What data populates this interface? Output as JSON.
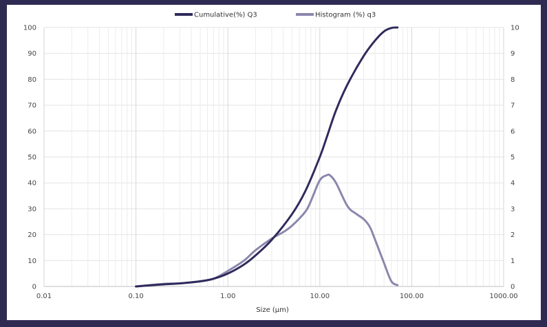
{
  "chart_data": {
    "type": "line",
    "xlabel": "Size (µm)",
    "xscale": "log",
    "xlim": [
      0.01,
      1000
    ],
    "x_ticks": [
      "0.01",
      "0.10",
      "1.00",
      "10.00",
      "100.00",
      "1000.00"
    ],
    "y_left_lim": [
      0,
      100
    ],
    "y_left_ticks": [
      "0",
      "10",
      "20",
      "30",
      "40",
      "50",
      "60",
      "70",
      "80",
      "90",
      "100"
    ],
    "y_right_lim": [
      0,
      10
    ],
    "y_right_ticks": [
      "0",
      "1",
      "2",
      "3",
      "4",
      "5",
      "6",
      "7",
      "8",
      "9",
      "10"
    ],
    "legend_position": "top",
    "grid": true,
    "series": [
      {
        "name": "Cumulative(%) Q3",
        "axis": "left",
        "color": "#2f2a5c",
        "points": [
          [
            0.1,
            0.0
          ],
          [
            0.15,
            0.5
          ],
          [
            0.2,
            0.8
          ],
          [
            0.3,
            1.2
          ],
          [
            0.5,
            2.0
          ],
          [
            0.7,
            3.0
          ],
          [
            1.0,
            5.0
          ],
          [
            1.5,
            8.5
          ],
          [
            2.0,
            12.0
          ],
          [
            3.0,
            18.0
          ],
          [
            5.0,
            28.0
          ],
          [
            7.0,
            37.0
          ],
          [
            10.0,
            50.0
          ],
          [
            12.0,
            58.0
          ],
          [
            15.0,
            68.0
          ],
          [
            20.0,
            78.0
          ],
          [
            30.0,
            89.0
          ],
          [
            40.0,
            95.0
          ],
          [
            50.0,
            98.5
          ],
          [
            60.0,
            99.8
          ],
          [
            70.0,
            100.0
          ]
        ]
      },
      {
        "name": "Histogram (%) q3",
        "axis": "right",
        "color": "#8a87ad",
        "points": [
          [
            0.1,
            0.0
          ],
          [
            0.2,
            0.1
          ],
          [
            0.3,
            0.12
          ],
          [
            0.5,
            0.2
          ],
          [
            0.7,
            0.3
          ],
          [
            1.0,
            0.6
          ],
          [
            1.5,
            1.0
          ],
          [
            2.0,
            1.4
          ],
          [
            3.0,
            1.85
          ],
          [
            4.0,
            2.1
          ],
          [
            5.0,
            2.35
          ],
          [
            7.0,
            2.9
          ],
          [
            8.0,
            3.3
          ],
          [
            10.0,
            4.1
          ],
          [
            12.0,
            4.3
          ],
          [
            13.0,
            4.28
          ],
          [
            15.0,
            4.0
          ],
          [
            20.0,
            3.1
          ],
          [
            25.0,
            2.8
          ],
          [
            30.0,
            2.6
          ],
          [
            35.0,
            2.3
          ],
          [
            40.0,
            1.8
          ],
          [
            50.0,
            0.9
          ],
          [
            60.0,
            0.2
          ],
          [
            70.0,
            0.05
          ]
        ]
      }
    ]
  }
}
